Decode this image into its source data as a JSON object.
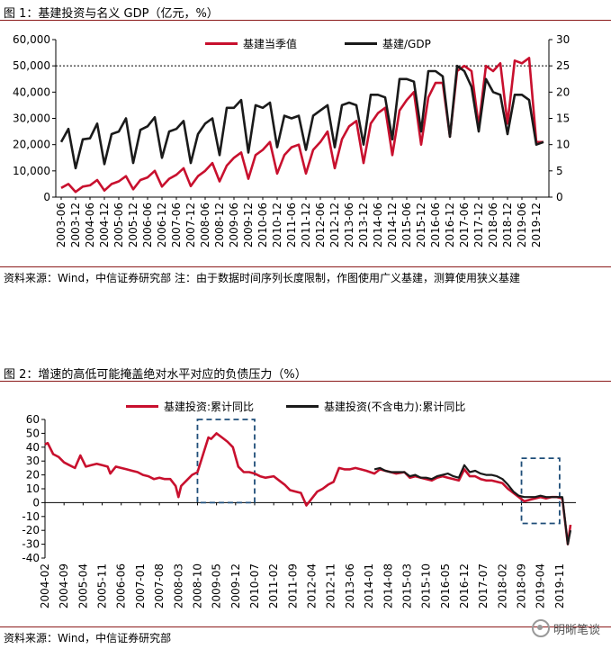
{
  "figure1": {
    "title": "图 1：基建投资与名义 GDP（亿元，%）",
    "source": "资料来源：Wind，中信证券研究部  注：由于数据时间序列长度限制，作图使用广义基建，测算使用狭义基建",
    "legend": [
      {
        "name": "基建当季值",
        "color": "#c8102e"
      },
      {
        "name": "基建/GDP",
        "color": "#1a1a1a"
      }
    ]
  },
  "figure2": {
    "title": "图 2：增速的高低可能掩盖绝对水平对应的负债压力（%）",
    "source": "资料来源：Wind，中信证券研究部",
    "legend": [
      {
        "name": "基建投资:累计同比",
        "color": "#c8102e"
      },
      {
        "name": "基建投资(不含电力):累计同比",
        "color": "#1a1a1a"
      }
    ]
  },
  "watermark": "明晰笔谈",
  "chart_data": [
    {
      "type": "line",
      "categories": [
        "2003-06",
        "2003-09",
        "2003-12",
        "2004-03",
        "2004-06",
        "2004-09",
        "2004-12",
        "2005-03",
        "2005-06",
        "2005-09",
        "2005-12",
        "2006-03",
        "2006-06",
        "2006-09",
        "2006-12",
        "2007-03",
        "2007-06",
        "2007-09",
        "2007-12",
        "2008-03",
        "2008-06",
        "2008-09",
        "2008-12",
        "2009-03",
        "2009-06",
        "2009-09",
        "2009-12",
        "2010-03",
        "2010-06",
        "2010-09",
        "2010-12",
        "2011-03",
        "2011-06",
        "2011-09",
        "2011-12",
        "2012-03",
        "2012-06",
        "2012-09",
        "2012-12",
        "2013-03",
        "2013-06",
        "2013-09",
        "2013-12",
        "2014-03",
        "2014-06",
        "2014-09",
        "2014-12",
        "2015-03",
        "2015-06",
        "2015-09",
        "2015-12",
        "2016-03",
        "2016-06",
        "2016-09",
        "2016-12",
        "2017-03",
        "2017-06",
        "2017-09",
        "2017-12",
        "2018-03",
        "2018-06",
        "2018-09",
        "2018-12",
        "2019-03",
        "2019-06",
        "2019-09",
        "2019-12",
        "2020-03"
      ],
      "tick_labels": [
        "2003-06",
        "2003-12",
        "2004-06",
        "2004-12",
        "2005-06",
        "2005-12",
        "2006-06",
        "2006-12",
        "2007-06",
        "2007-12",
        "2008-06",
        "2008-12",
        "2009-06",
        "2009-12",
        "2010-06",
        "2010-12",
        "2011-06",
        "2011-12",
        "2012-06",
        "2012-12",
        "2013-06",
        "2013-12",
        "2014-06",
        "2014-12",
        "2015-06",
        "2015-12",
        "2016-06",
        "2016-12",
        "2017-06",
        "2017-12",
        "2018-06",
        "2018-12",
        "2019-06",
        "2019-12"
      ],
      "series": [
        {
          "name": "基建当季值",
          "axis": "left",
          "values": [
            3500,
            5000,
            2000,
            4000,
            4500,
            6500,
            2500,
            5000,
            6000,
            8000,
            3000,
            6500,
            7500,
            10000,
            4000,
            7000,
            8500,
            11000,
            4200,
            8000,
            10000,
            13000,
            6000,
            12000,
            15000,
            17000,
            7000,
            16000,
            18000,
            21000,
            9000,
            16000,
            19000,
            20000,
            9000,
            18000,
            21000,
            25000,
            11000,
            22000,
            27000,
            29000,
            13000,
            28000,
            32000,
            34000,
            16000,
            33000,
            37000,
            40000,
            20000,
            38000,
            43500,
            43500,
            23000,
            48000,
            50000,
            48000,
            27000,
            50000,
            48000,
            51000,
            28000,
            52000,
            51000,
            53000,
            21000,
            21000
          ]
        },
        {
          "name": "基建/GDP",
          "axis": "right",
          "values": [
            10.5,
            13,
            5.5,
            11,
            11.2,
            14,
            6.3,
            12,
            12.5,
            15,
            6.5,
            12.8,
            13.5,
            15.2,
            7.5,
            12.5,
            13,
            14.5,
            6.5,
            12,
            14,
            15,
            8,
            17,
            17,
            18.5,
            8.5,
            17.5,
            17,
            18,
            9.5,
            15.5,
            15,
            15.5,
            9,
            15.5,
            16.5,
            17.5,
            9.5,
            17.5,
            18,
            17.5,
            10,
            19.5,
            19.5,
            19,
            11,
            22.5,
            22.5,
            22,
            12.5,
            24,
            24,
            23,
            11.5,
            25,
            24,
            21,
            12.5,
            22.5,
            20,
            19.5,
            12,
            19.5,
            19.5,
            18.5,
            10,
            10.5
          ]
        }
      ],
      "ylim_left": [
        0,
        60000
      ],
      "ylim_right": [
        0,
        30
      ],
      "yticks_left": [
        "0",
        "10,000",
        "20,000",
        "30,000",
        "40,000",
        "50,000",
        "60,000"
      ],
      "yticks_right": [
        "0",
        "5",
        "10",
        "15",
        "20",
        "25",
        "30"
      ],
      "reference_line": 25,
      "legend_position": "top"
    },
    {
      "type": "line",
      "tick_labels": [
        "2004-02",
        "2004-09",
        "2005-04",
        "2005-11",
        "2006-06",
        "2007-01",
        "2007-08",
        "2008-03",
        "2008-10",
        "2009-05",
        "2009-12",
        "2010-07",
        "2011-02",
        "2011-09",
        "2012-04",
        "2012-11",
        "2013-06",
        "2014-01",
        "2014-08",
        "2015-03",
        "2015-10",
        "2016-05",
        "2016-12",
        "2017-07",
        "2018-02",
        "2018-09",
        "2019-04",
        "2019-11"
      ],
      "x_range": [
        "2004-02",
        "2020-03"
      ],
      "series": [
        {
          "name": "基建投资:累计同比",
          "points": [
            [
              "2004-02",
              42
            ],
            [
              "2004-03",
              43
            ],
            [
              "2004-05",
              35
            ],
            [
              "2004-07",
              33
            ],
            [
              "2004-09",
              29
            ],
            [
              "2004-11",
              27
            ],
            [
              "2005-01",
              25
            ],
            [
              "2005-03",
              34
            ],
            [
              "2005-05",
              26
            ],
            [
              "2005-07",
              27
            ],
            [
              "2005-09",
              28
            ],
            [
              "2005-11",
              27
            ],
            [
              "2006-01",
              26
            ],
            [
              "2006-02",
              21
            ],
            [
              "2006-04",
              26
            ],
            [
              "2006-06",
              25
            ],
            [
              "2006-08",
              24
            ],
            [
              "2006-10",
              23
            ],
            [
              "2006-12",
              22
            ],
            [
              "2007-02",
              20
            ],
            [
              "2007-04",
              19
            ],
            [
              "2007-06",
              17
            ],
            [
              "2007-08",
              18
            ],
            [
              "2007-10",
              17
            ],
            [
              "2007-12",
              17
            ],
            [
              "2008-02",
              12
            ],
            [
              "2008-03",
              4
            ],
            [
              "2008-04",
              12
            ],
            [
              "2008-06",
              16
            ],
            [
              "2008-08",
              20
            ],
            [
              "2008-10",
              22
            ],
            [
              "2009-02",
              47
            ],
            [
              "2009-03",
              46
            ],
            [
              "2009-05",
              50
            ],
            [
              "2009-07",
              47
            ],
            [
              "2009-09",
              44
            ],
            [
              "2009-11",
              40
            ],
            [
              "2010-01",
              26
            ],
            [
              "2010-03",
              22
            ],
            [
              "2010-05",
              22
            ],
            [
              "2010-07",
              21
            ],
            [
              "2010-09",
              19
            ],
            [
              "2010-11",
              18
            ],
            [
              "2011-02",
              19
            ],
            [
              "2011-04",
              16
            ],
            [
              "2011-06",
              13
            ],
            [
              "2011-08",
              9
            ],
            [
              "2011-10",
              8
            ],
            [
              "2011-12",
              7
            ],
            [
              "2012-02",
              -2
            ],
            [
              "2012-04",
              3
            ],
            [
              "2012-06",
              8
            ],
            [
              "2012-08",
              10
            ],
            [
              "2012-10",
              13
            ],
            [
              "2012-12",
              15
            ],
            [
              "2013-02",
              25
            ],
            [
              "2013-04",
              24
            ],
            [
              "2013-06",
              24
            ],
            [
              "2013-08",
              25
            ],
            [
              "2013-10",
              24
            ],
            [
              "2013-12",
              23
            ],
            [
              "2014-03",
              21
            ],
            [
              "2014-05",
              24
            ],
            [
              "2014-07",
              23
            ],
            [
              "2014-09",
              22
            ],
            [
              "2014-11",
              21
            ],
            [
              "2015-02",
              22
            ],
            [
              "2015-04",
              18
            ],
            [
              "2015-06",
              19
            ],
            [
              "2015-08",
              18
            ],
            [
              "2015-10",
              17
            ],
            [
              "2015-12",
              16
            ],
            [
              "2016-02",
              18
            ],
            [
              "2016-04",
              19
            ],
            [
              "2016-06",
              18
            ],
            [
              "2016-08",
              17
            ],
            [
              "2016-10",
              16
            ],
            [
              "2016-12",
              24
            ],
            [
              "2017-02",
              19
            ],
            [
              "2017-04",
              19
            ],
            [
              "2017-06",
              17
            ],
            [
              "2017-08",
              16
            ],
            [
              "2017-10",
              16
            ],
            [
              "2017-12",
              15
            ],
            [
              "2018-02",
              14
            ],
            [
              "2018-04",
              10
            ],
            [
              "2018-06",
              7
            ],
            [
              "2018-08",
              4
            ],
            [
              "2018-10",
              1
            ],
            [
              "2018-12",
              2
            ],
            [
              "2019-02",
              3
            ],
            [
              "2019-04",
              4
            ],
            [
              "2019-06",
              3
            ],
            [
              "2019-08",
              4
            ],
            [
              "2019-10",
              4
            ],
            [
              "2019-12",
              3
            ],
            [
              "2020-02",
              -30
            ],
            [
              "2020-03",
              -16
            ]
          ]
        },
        {
          "name": "基建投资(不含电力):累计同比",
          "points": [
            [
              "2014-03",
              24
            ],
            [
              "2014-05",
              25
            ],
            [
              "2014-07",
              23
            ],
            [
              "2014-09",
              22
            ],
            [
              "2014-11",
              22
            ],
            [
              "2015-02",
              22
            ],
            [
              "2015-04",
              19
            ],
            [
              "2015-06",
              20
            ],
            [
              "2015-08",
              18
            ],
            [
              "2015-10",
              18
            ],
            [
              "2015-12",
              17
            ],
            [
              "2016-02",
              19
            ],
            [
              "2016-04",
              20
            ],
            [
              "2016-06",
              21
            ],
            [
              "2016-08",
              19
            ],
            [
              "2016-10",
              18
            ],
            [
              "2016-12",
              27
            ],
            [
              "2017-02",
              22
            ],
            [
              "2017-04",
              23
            ],
            [
              "2017-06",
              21
            ],
            [
              "2017-08",
              20
            ],
            [
              "2017-10",
              20
            ],
            [
              "2017-12",
              19
            ],
            [
              "2018-02",
              17
            ],
            [
              "2018-04",
              13
            ],
            [
              "2018-06",
              8
            ],
            [
              "2018-08",
              5
            ],
            [
              "2018-10",
              4
            ],
            [
              "2018-12",
              4
            ],
            [
              "2019-02",
              4
            ],
            [
              "2019-04",
              5
            ],
            [
              "2019-06",
              4
            ],
            [
              "2019-08",
              4
            ],
            [
              "2019-10",
              4
            ],
            [
              "2019-12",
              4
            ],
            [
              "2020-02",
              -30
            ],
            [
              "2020-03",
              -20
            ]
          ]
        }
      ],
      "ylim": [
        -40,
        60
      ],
      "yticks": [
        "-40",
        "-30",
        "-20",
        "-10",
        "0",
        "10",
        "20",
        "30",
        "40",
        "50",
        "60"
      ],
      "highlight_boxes": [
        {
          "from": "2008-10",
          "to": "2010-07",
          "y_from": 0,
          "y_to": 60
        },
        {
          "from": "2018-09",
          "to": "2019-11",
          "y_from": -15,
          "y_to": 32
        }
      ],
      "legend_position": "top"
    }
  ]
}
